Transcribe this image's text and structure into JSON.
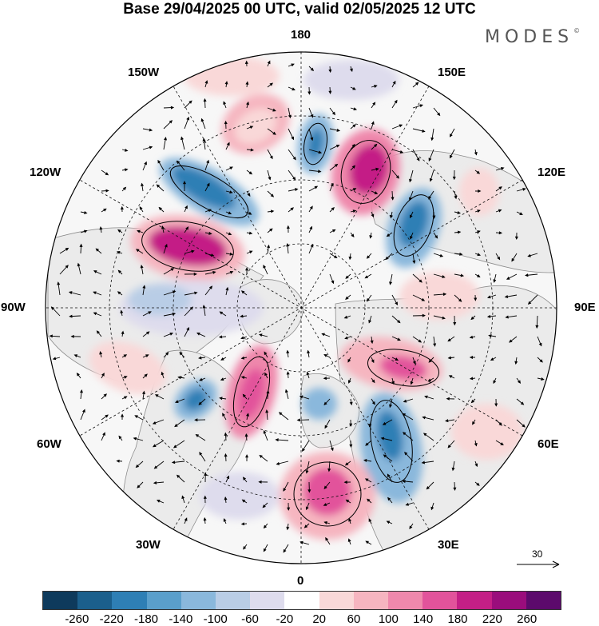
{
  "title": "Base 29/04/2025 00 UTC, valid 02/05/2025 12 UTC",
  "logo_text": "MODES",
  "logo_mark": "©",
  "longitude_labels": {
    "lon_180": "180",
    "lon_150e": "150E",
    "lon_120e": "120E",
    "lon_90e": "90E",
    "lon_60e": "60E",
    "lon_30e": "30E",
    "lon_0": "0",
    "lon_30w": "30W",
    "lon_60w": "60W",
    "lon_90w": "90W",
    "lon_120w": "120W",
    "lon_150w": "150W"
  },
  "reference_vector": {
    "label": "30"
  },
  "colorbar": {
    "ticks": [
      "-260",
      "-220",
      "-180",
      "-140",
      "-100",
      "-60",
      "-20",
      "20",
      "60",
      "100",
      "140",
      "180",
      "220",
      "260"
    ],
    "colors": [
      "#0e3a5c",
      "#1b5f8c",
      "#2e7fb5",
      "#5a9fcb",
      "#8ab8dc",
      "#b9cde6",
      "#dedced",
      "#ffffff",
      "#f9d8d8",
      "#f6b5c0",
      "#ef88ac",
      "#e2539b",
      "#c41f86",
      "#9a0d7c",
      "#5c0a6c"
    ]
  },
  "colors": {
    "land": "#ebebeb",
    "ocean": "#f7f7f7",
    "coast": "#8c8c8c"
  }
}
